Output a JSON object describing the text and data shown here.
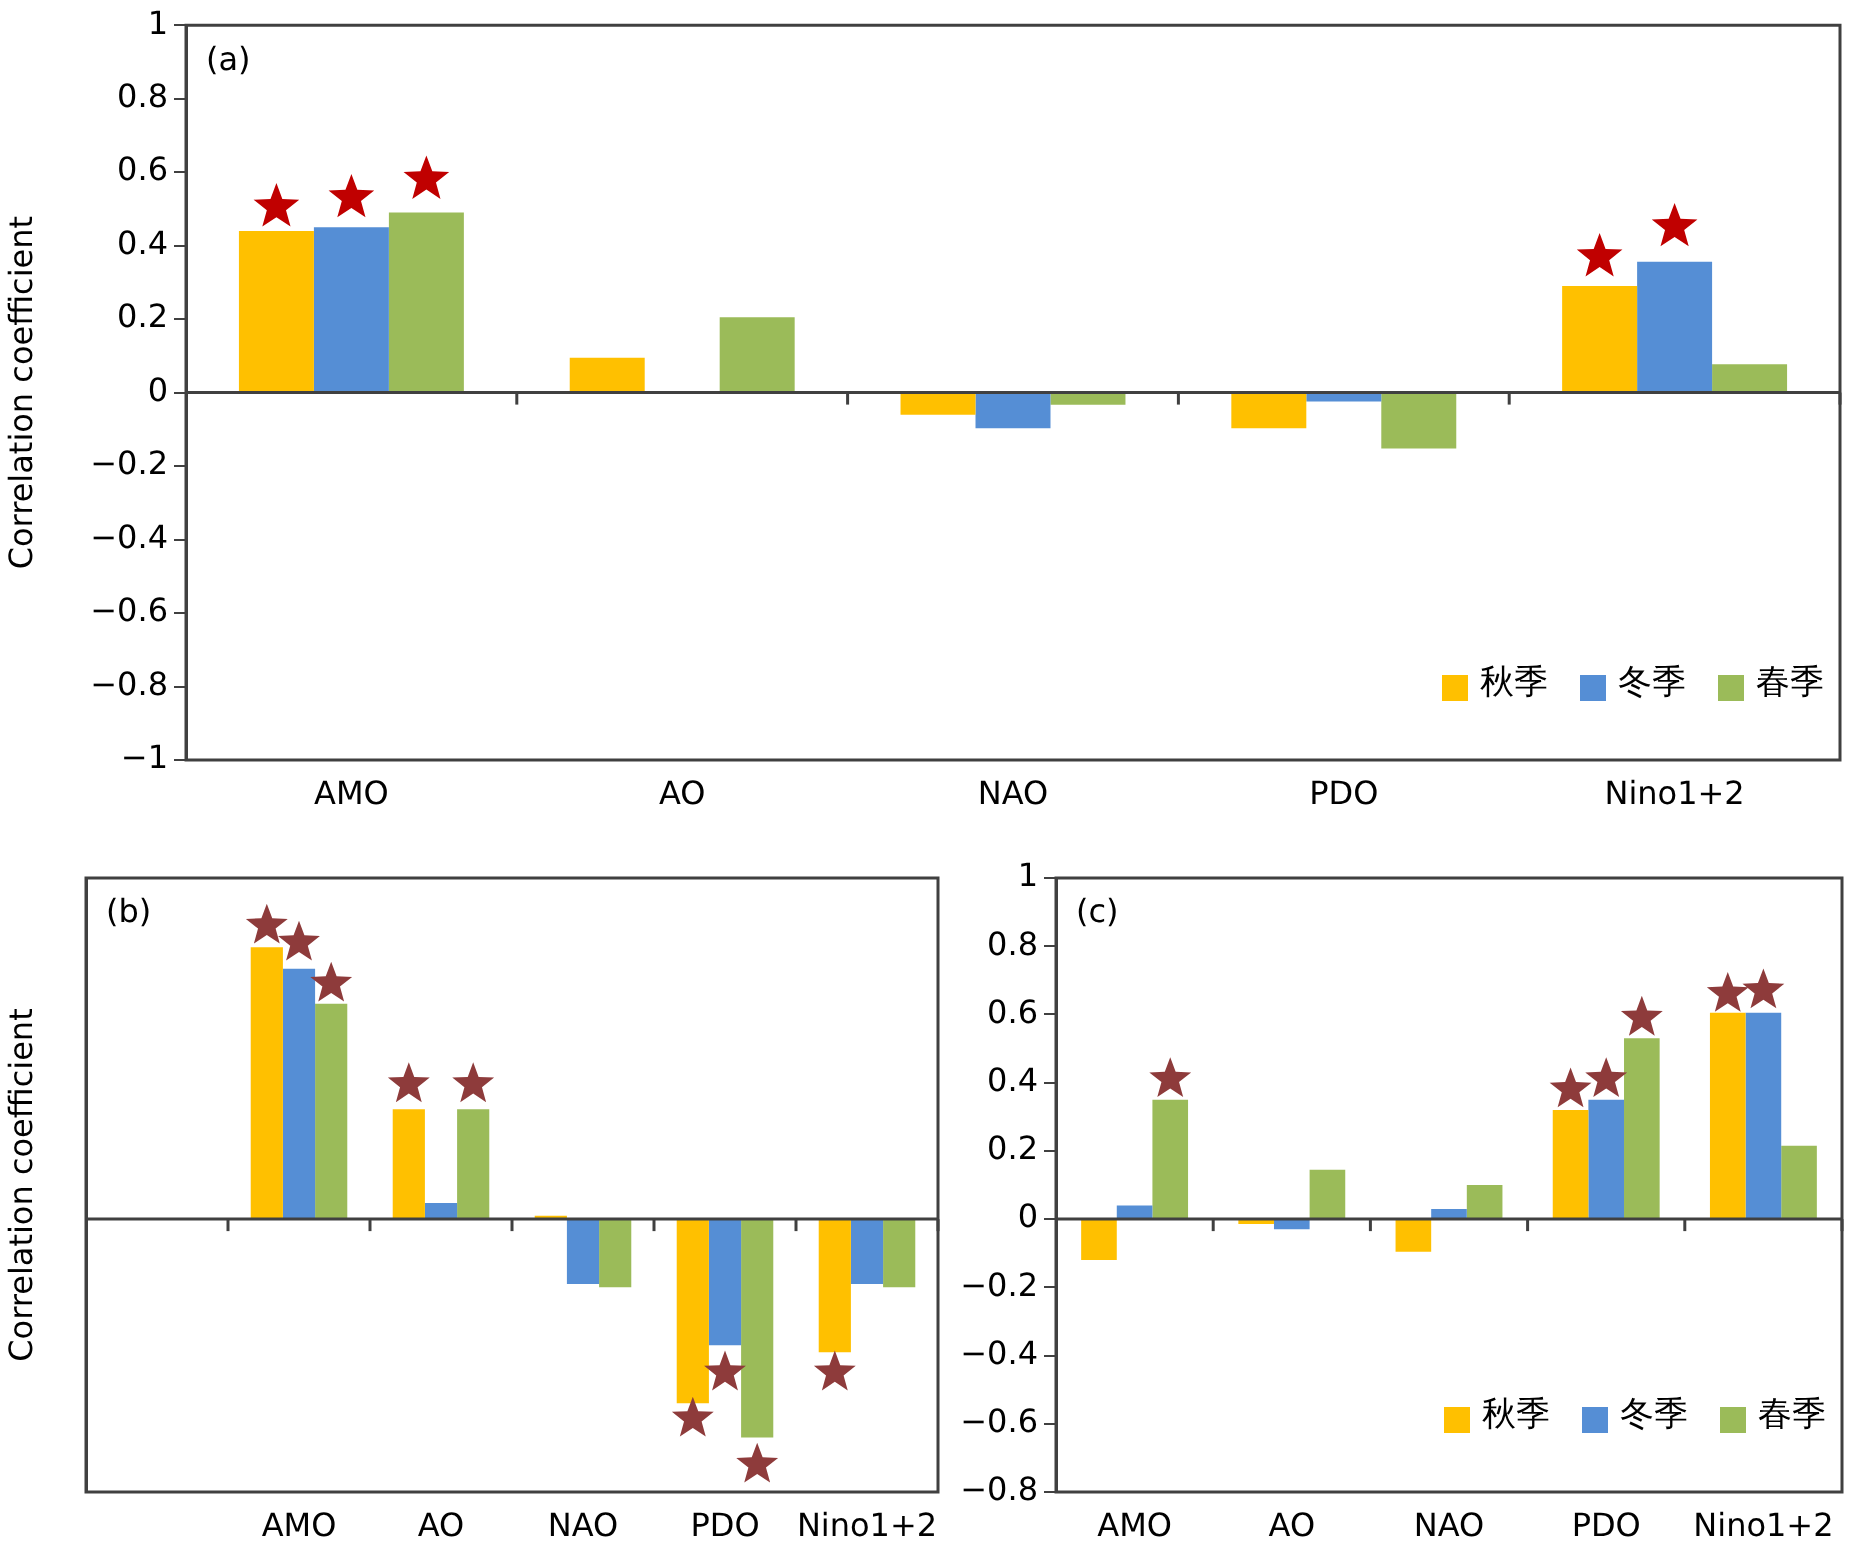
{
  "chart_data": [
    {
      "type": "bar",
      "ylabel": "Correlation coefficient",
      "annotations": [
        "(a)"
      ],
      "categories": [
        "AMO",
        "AO",
        "NAO",
        "PDO",
        "Nino1+2"
      ],
      "series": [
        {
          "name": "秋季",
          "color": "#ffc000",
          "values": [
            0.44,
            0.095,
            -0.06,
            -0.097,
            0.29
          ]
        },
        {
          "name": "冬季",
          "color": "#558ed5",
          "values": [
            0.45,
            0,
            -0.097,
            -0.024,
            0.356
          ]
        },
        {
          "name": "春季",
          "color": "#9bbb59",
          "values": [
            0.49,
            0.205,
            -0.033,
            -0.152,
            0.077
          ]
        },
        {
          "type": "scatter",
          "marker": "star",
          "color": "#c00000",
          "values": [
            0.505,
            null,
            null,
            null,
            0.369
          ]
        },
        {
          "type": "scatter",
          "marker": "star",
          "color": "#c00000",
          "values": [
            0.53,
            null,
            null,
            null,
            0.451
          ]
        },
        {
          "type": "scatter",
          "marker": "star",
          "color": "#c00000",
          "values": [
            0.58,
            null,
            null,
            null,
            null
          ]
        }
      ],
      "ylim": [
        -1,
        1
      ],
      "yticks": [
        {
          "value": -1,
          "label": "−1"
        },
        {
          "value": -0.8,
          "label": "−0.8"
        },
        {
          "value": -0.6,
          "label": "−0.6"
        },
        {
          "value": -0.4,
          "label": "−0.4"
        },
        {
          "value": -0.2,
          "label": "−0.2"
        },
        0,
        0.2,
        0.4,
        0.6,
        0.8,
        1
      ],
      "legend": "bottom right"
    },
    {
      "type": "bar",
      "ylabel": "Correlation coefficient",
      "annotations": [
        "(b)"
      ],
      "categories": [
        null,
        "AMO",
        "AO",
        "NAO",
        "PDO",
        "Nino1+2"
      ],
      "series": [
        {
          "color": "#ffc000",
          "values": [
            null,
            0.797,
            0.322,
            0.01,
            -0.54,
            -0.39
          ]
        },
        {
          "color": "#558ed5",
          "values": [
            null,
            0.734,
            0.047,
            -0.19,
            -0.37,
            -0.19
          ]
        },
        {
          "color": "#9bbb59",
          "values": [
            null,
            0.631,
            0.322,
            -0.2,
            -0.64,
            -0.2
          ]
        },
        {
          "type": "scatter",
          "marker": "star",
          "color": "#8e3b3b",
          "values": [
            null,
            0.86,
            0.395,
            null,
            -0.585,
            -0.45
          ]
        },
        {
          "type": "scatter",
          "marker": "star",
          "color": "#8e3b3b",
          "values": [
            null,
            0.81,
            null,
            null,
            -0.45,
            null
          ]
        },
        {
          "type": "scatter",
          "marker": "star",
          "color": "#8e3b3b",
          "values": [
            null,
            0.69,
            0.395,
            null,
            -0.72,
            null
          ]
        }
      ],
      "ylim": [
        -0.8,
        1
      ],
      "tick_labels": "x"
    },
    {
      "type": "bar",
      "annotations": [
        "(c)"
      ],
      "categories": [
        "AMO",
        "AO",
        "NAO",
        "PDO",
        "Nino1+2"
      ],
      "series": [
        {
          "name": "秋季",
          "color": "#ffc000",
          "values": [
            -0.12,
            -0.014,
            -0.096,
            0.32,
            0.605
          ]
        },
        {
          "name": "冬季",
          "color": "#558ed5",
          "values": [
            0.04,
            -0.03,
            0.03,
            0.35,
            0.605
          ]
        },
        {
          "name": "春季",
          "color": "#9bbb59",
          "values": [
            0.35,
            0.145,
            0.1,
            0.53,
            0.215
          ]
        },
        {
          "type": "scatter",
          "marker": "star",
          "color": "#8e3b3b",
          "values": [
            null,
            null,
            null,
            0.38,
            0.66
          ]
        },
        {
          "type": "scatter",
          "marker": "star",
          "color": "#8e3b3b",
          "values": [
            null,
            null,
            null,
            0.41,
            0.67
          ]
        },
        {
          "type": "scatter",
          "marker": "star",
          "color": "#8e3b3b",
          "values": [
            0.41,
            null,
            null,
            0.59,
            null
          ]
        }
      ],
      "ylim": [
        -0.8,
        1
      ],
      "yticks": [
        {
          "value": -0.8,
          "label": "−0.8"
        },
        {
          "value": -0.6,
          "label": "−0.6"
        },
        {
          "value": -0.4,
          "label": "−0.4"
        },
        {
          "value": -0.2,
          "label": "−0.2"
        },
        0,
        0.2,
        0.4,
        0.6,
        0.8,
        1
      ],
      "legend": "bottom right"
    }
  ]
}
